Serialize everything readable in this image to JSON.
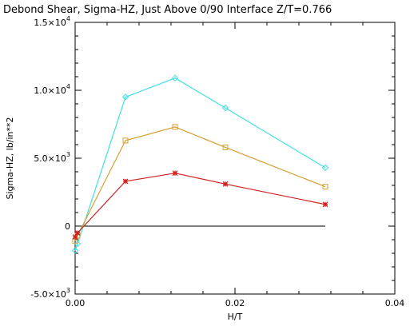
{
  "chart_data": {
    "type": "line",
    "title": "Debond Shear, Sigma-HZ, Just Above 0/90 Interface Z/T=0.766",
    "xlabel": "H/T",
    "ylabel": "Sigma-HZ,  lb/in**2",
    "xlim": [
      0,
      0.04
    ],
    "ylim": [
      -5000,
      15000
    ],
    "grid": false,
    "legend": "none",
    "x_ticks": [
      {
        "value": 0.0,
        "label": "0.00"
      },
      {
        "value": 0.02,
        "label": "0.02"
      },
      {
        "value": 0.04,
        "label": "0.04"
      }
    ],
    "y_ticks": [
      {
        "value": 15000,
        "mantissa": "1.5×10",
        "exp": "4"
      },
      {
        "value": 10000,
        "mantissa": "1.0×10",
        "exp": "4"
      },
      {
        "value": 5000,
        "mantissa": "5.0×10",
        "exp": "3"
      },
      {
        "value": 0,
        "mantissa": "0",
        "exp": ""
      },
      {
        "value": -5000,
        "mantissa": "-5.0×10",
        "exp": "3"
      }
    ],
    "reference_line": {
      "y": 0,
      "x": [
        0,
        0.0313
      ]
    },
    "series": [
      {
        "color": "#40e0e0",
        "marker": "diamond",
        "x": [
          0.0,
          0.0003,
          0.0063,
          0.0125,
          0.0188,
          0.0313
        ],
        "y": [
          -1800,
          -1300,
          9500,
          10900,
          8700,
          4300
        ]
      },
      {
        "color": "#d4a030",
        "marker": "square",
        "x": [
          0.0,
          0.0003,
          0.0063,
          0.0125,
          0.0188,
          0.0313
        ],
        "y": [
          -1100,
          -700,
          6300,
          7300,
          5800,
          2900
        ]
      },
      {
        "color": "#d02020",
        "marker": "x",
        "x": [
          0.0,
          0.0003,
          0.0063,
          0.0125,
          0.0188,
          0.0313
        ],
        "y": [
          -800,
          -500,
          3300,
          3900,
          3100,
          1600
        ]
      }
    ]
  }
}
